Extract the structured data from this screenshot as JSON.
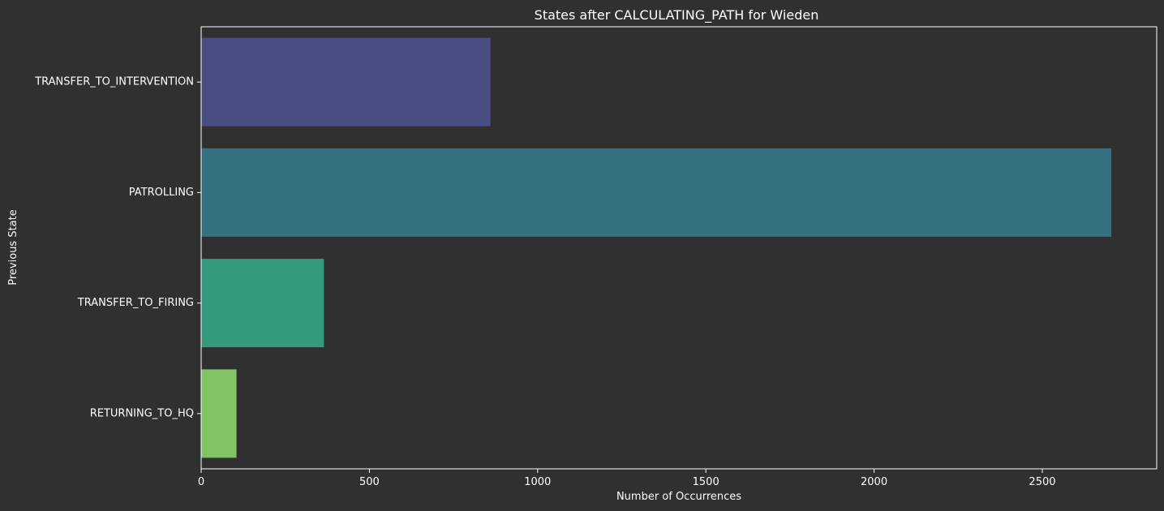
{
  "colors": {
    "background": "#303030",
    "axes": "#ffffff",
    "text": "#ffffff"
  },
  "chart_data": {
    "type": "bar",
    "orientation": "horizontal",
    "title": "States after CALCULATING_PATH for Wieden",
    "xlabel": "Number of Occurrences",
    "ylabel": "Previous State",
    "categories": [
      "TRANSFER_TO_INTERVENTION",
      "PATROLLING",
      "TRANSFER_TO_FIRING",
      "RETURNING_TO_HQ"
    ],
    "values": [
      860,
      2705,
      365,
      105
    ],
    "bar_colors": [
      "#4a4e82",
      "#357180",
      "#339a7b",
      "#82c464"
    ],
    "xlim": [
      0,
      2840
    ],
    "xticks": [
      0,
      500,
      1000,
      1500,
      2000,
      2500
    ],
    "grid": false,
    "legend": "none"
  }
}
